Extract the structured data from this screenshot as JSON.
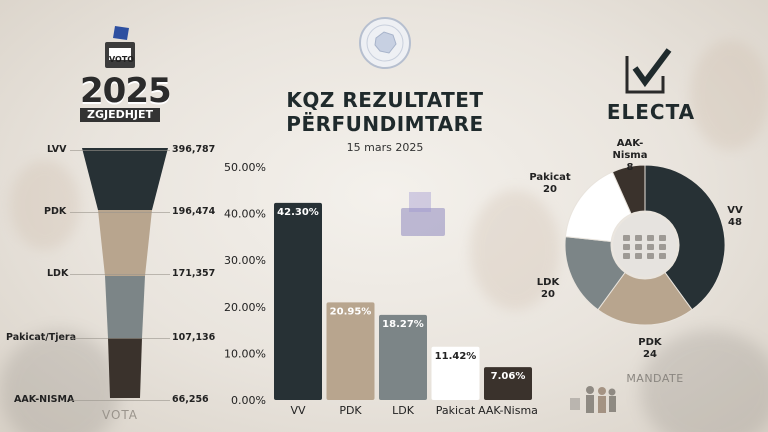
{
  "header": {
    "title_line1": "KQZ REZULTATET",
    "title_line2": "PËRFUNDIMTARE",
    "date": "15 mars 2025"
  },
  "badge": {
    "ballot_label": "VOTO",
    "year": "2025",
    "subtitle": "ZGJEDHJET"
  },
  "brand": {
    "name": "ELECTA"
  },
  "colors": {
    "vv": "#273135",
    "pdk": "#b8a58e",
    "ldk": "#7c8587",
    "pakicat": "#ffffff",
    "aak": "#3a322c"
  },
  "chart_data": [
    {
      "type": "funnel",
      "label": "VOTA",
      "categories": [
        "LVV",
        "PDK",
        "LDK",
        "Pakicat/Tjera",
        "AAK-NISMA"
      ],
      "values": [
        "396,787",
        "196,474",
        "171,357",
        "107,136",
        "66,256"
      ]
    },
    {
      "type": "bar",
      "categories": [
        "VV",
        "PDK",
        "LDK",
        "Pakicat",
        "AAK-Nisma"
      ],
      "values": [
        42.3,
        20.95,
        18.27,
        11.42,
        7.06
      ],
      "value_labels": [
        "42.30%",
        "20.95%",
        "18.27%",
        "11.42%",
        "7.06%"
      ],
      "ylim": [
        0,
        50
      ],
      "yticks": [
        "0.00%",
        "10.00%",
        "20.00%",
        "30.00%",
        "40.00%",
        "50.00%"
      ],
      "grid": false
    },
    {
      "type": "pie",
      "label": "MANDATE",
      "categories": [
        "VV",
        "PDK",
        "LDK",
        "Pakicat",
        "AAK-Nisma"
      ],
      "values": [
        48,
        24,
        20,
        20,
        8
      ]
    }
  ]
}
